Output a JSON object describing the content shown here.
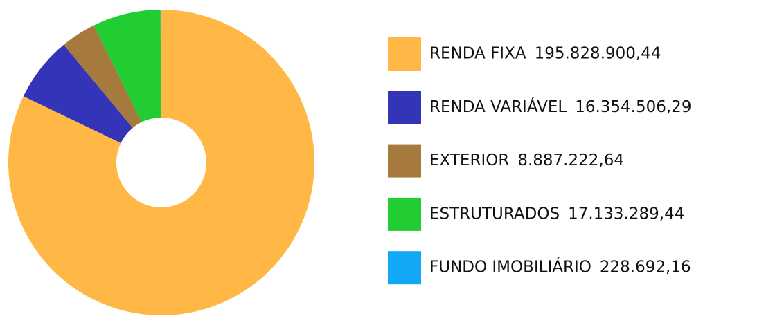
{
  "chart_data": {
    "type": "pie",
    "donut": true,
    "categories": [
      "RENDA FIXA",
      "RENDA VARIÁVEL",
      "EXTERIOR",
      "ESTRUTURADOS",
      "FUNDO IMOBILIÁRIO"
    ],
    "values": [
      195828900.44,
      16354506.29,
      8887222.64,
      17133289.44,
      228692.16
    ],
    "value_labels": [
      "195.828.900,44",
      "16.354.506,29",
      "8.887.222,64",
      "17.133.289,44",
      "228.692,16"
    ],
    "colors": [
      "#ffb845",
      "#3434b8",
      "#a57a3c",
      "#22cc33",
      "#12a8f5"
    ]
  }
}
